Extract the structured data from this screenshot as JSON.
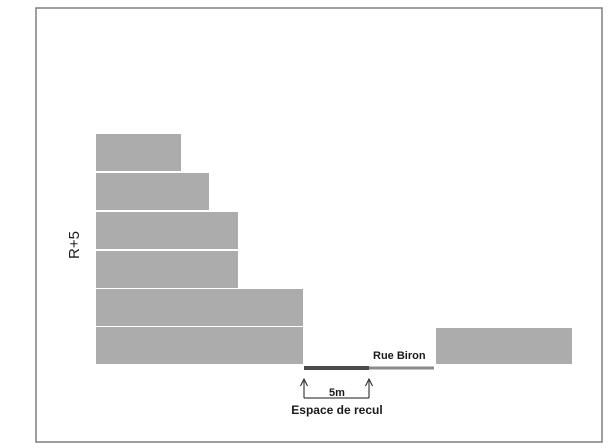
{
  "diagram": {
    "floor_label": "R+5",
    "street_label": "Rue Biron",
    "distance_label": "5m",
    "setback_label": "Espace de recul",
    "colors": {
      "block_fill": "#acacac",
      "block_separator": "#ffffff",
      "border": "#7f7f7f",
      "setback_line": "#4a4a4a",
      "street_line": "#8a8a8a",
      "text": "#1a1a1a"
    }
  }
}
